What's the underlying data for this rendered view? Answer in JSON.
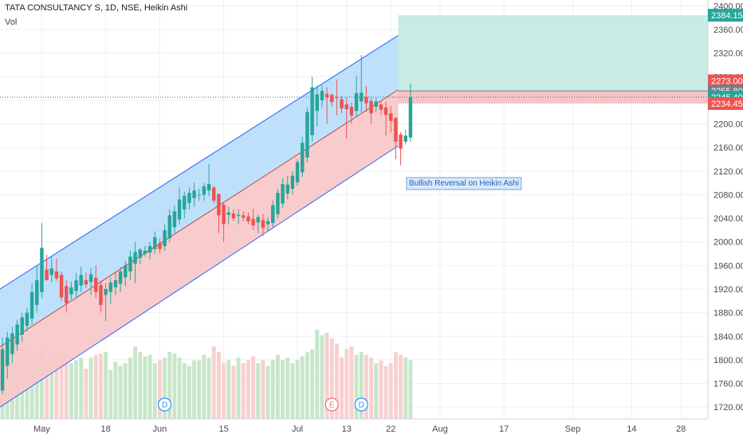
{
  "header": {
    "title": "TATA CONSULTANCY S, 1D, NSE, Heikin Ashi",
    "vol_label": "Vol"
  },
  "annotation": "Bullish Reversal on Heikin Ashi",
  "colors": {
    "up": "#26a69a",
    "down": "#ef5350",
    "vol_up": "#c8e6c9",
    "vol_down": "#f8d0d0",
    "channel_upper_fill": "#bbdefb",
    "channel_lower_fill": "#f8c9c9",
    "channel_line": "#2962ff",
    "target_fill": "#c8ebe4",
    "stop_fill": "#f7c5c5",
    "last_price_line": "#2a6b9c"
  },
  "price_tags": [
    {
      "label": "2384.15",
      "value": 2384.15,
      "color": "#26a69a"
    },
    {
      "label": "2273.00",
      "value": 2273.0,
      "color": "#ef5350"
    },
    {
      "label": "2255.80",
      "value": 2255.8,
      "color": "#787b86"
    },
    {
      "label": "2245.40",
      "value": 2245.4,
      "color": "#26a69a"
    },
    {
      "label": "2234.45",
      "value": 2234.45,
      "color": "#ef5350"
    }
  ],
  "event_markers": [
    {
      "label": "D",
      "type": "dividend",
      "color": "#2196f3",
      "date_index": 33
    },
    {
      "label": "E",
      "type": "earnings",
      "color": "#e57373",
      "date_index": 67
    },
    {
      "label": "D",
      "type": "dividend",
      "color": "#2196f3",
      "date_index": 73
    }
  ],
  "chart_data": {
    "type": "candlestick",
    "title": "TATA CONSULTANCY S, 1D, NSE, Heikin Ashi",
    "y_ticks": [
      1720,
      1760,
      1800,
      1840,
      1880,
      1920,
      1960,
      2000,
      2040,
      2080,
      2120,
      2160,
      2200,
      2240,
      2280,
      2320,
      2360,
      2400
    ],
    "ylim": [
      1700,
      2410
    ],
    "x_ticks": [
      {
        "label": "May",
        "index": 8
      },
      {
        "label": "18",
        "index": 21
      },
      {
        "label": "Jun",
        "index": 32
      },
      {
        "label": "15",
        "index": 45
      },
      {
        "label": "Jul",
        "index": 60
      },
      {
        "label": "13",
        "index": 70
      },
      {
        "label": "22",
        "index": 79
      },
      {
        "label": "Aug",
        "index": 89
      },
      {
        "label": "17",
        "index": 102
      },
      {
        "label": "Sep",
        "index": 116
      },
      {
        "label": "14",
        "index": 128
      },
      {
        "label": "28",
        "index": 138
      }
    ],
    "xlim": [
      -0.5,
      143.5
    ],
    "candles": [
      {
        "o": 1748,
        "h": 1838,
        "l": 1742,
        "c": 1818
      },
      {
        "o": 1790,
        "h": 1848,
        "l": 1768,
        "c": 1838
      },
      {
        "o": 1810,
        "h": 1856,
        "l": 1795,
        "c": 1845
      },
      {
        "o": 1826,
        "h": 1868,
        "l": 1815,
        "c": 1860
      },
      {
        "o": 1843,
        "h": 1880,
        "l": 1830,
        "c": 1872
      },
      {
        "o": 1858,
        "h": 1888,
        "l": 1848,
        "c": 1880
      },
      {
        "o": 1870,
        "h": 1930,
        "l": 1860,
        "c": 1915
      },
      {
        "o": 1893,
        "h": 1960,
        "l": 1880,
        "c": 1935
      },
      {
        "o": 1915,
        "h": 2032,
        "l": 1905,
        "c": 1990
      },
      {
        "o": 1953,
        "h": 1978,
        "l": 1935,
        "c": 1935
      },
      {
        "o": 1944,
        "h": 1975,
        "l": 1932,
        "c": 1955
      },
      {
        "o": 1950,
        "h": 1972,
        "l": 1934,
        "c": 1938
      },
      {
        "o": 1944,
        "h": 1950,
        "l": 1900,
        "c": 1906
      },
      {
        "o": 1925,
        "h": 1935,
        "l": 1880,
        "c": 1896
      },
      {
        "o": 1911,
        "h": 1933,
        "l": 1902,
        "c": 1923
      },
      {
        "o": 1917,
        "h": 1947,
        "l": 1905,
        "c": 1935
      },
      {
        "o": 1926,
        "h": 1958,
        "l": 1915,
        "c": 1944
      },
      {
        "o": 1935,
        "h": 1948,
        "l": 1922,
        "c": 1928
      },
      {
        "o": 1932,
        "h": 1956,
        "l": 1910,
        "c": 1945
      },
      {
        "o": 1939,
        "h": 1960,
        "l": 1905,
        "c": 1915
      },
      {
        "o": 1927,
        "h": 1934,
        "l": 1880,
        "c": 1893
      },
      {
        "o": 1910,
        "h": 1930,
        "l": 1866,
        "c": 1920
      },
      {
        "o": 1915,
        "h": 1940,
        "l": 1895,
        "c": 1931
      },
      {
        "o": 1923,
        "h": 1948,
        "l": 1910,
        "c": 1935
      },
      {
        "o": 1929,
        "h": 1958,
        "l": 1915,
        "c": 1950
      },
      {
        "o": 1940,
        "h": 1968,
        "l": 1925,
        "c": 1960
      },
      {
        "o": 1950,
        "h": 1985,
        "l": 1935,
        "c": 1975
      },
      {
        "o": 1963,
        "h": 2000,
        "l": 1930,
        "c": 1983
      },
      {
        "o": 1973,
        "h": 1990,
        "l": 1962,
        "c": 1987
      },
      {
        "o": 1980,
        "h": 1993,
        "l": 1975,
        "c": 1985
      },
      {
        "o": 1982,
        "h": 2000,
        "l": 1970,
        "c": 1993
      },
      {
        "o": 1988,
        "h": 2018,
        "l": 1980,
        "c": 2008
      },
      {
        "o": 1998,
        "h": 2006,
        "l": 1980,
        "c": 1988
      },
      {
        "o": 1993,
        "h": 2030,
        "l": 1985,
        "c": 2020
      },
      {
        "o": 2006,
        "h": 2055,
        "l": 2000,
        "c": 2045
      },
      {
        "o": 2025,
        "h": 2062,
        "l": 2015,
        "c": 2052
      },
      {
        "o": 2038,
        "h": 2092,
        "l": 2030,
        "c": 2072
      },
      {
        "o": 2055,
        "h": 2085,
        "l": 2040,
        "c": 2078
      },
      {
        "o": 2066,
        "h": 2092,
        "l": 2055,
        "c": 2083
      },
      {
        "o": 2074,
        "h": 2100,
        "l": 2060,
        "c": 2087
      },
      {
        "o": 2080,
        "h": 2090,
        "l": 2070,
        "c": 2080
      },
      {
        "o": 2080,
        "h": 2100,
        "l": 2070,
        "c": 2094
      },
      {
        "o": 2087,
        "h": 2132,
        "l": 2078,
        "c": 2098
      },
      {
        "o": 2092,
        "h": 2095,
        "l": 2065,
        "c": 2070
      },
      {
        "o": 2081,
        "h": 2082,
        "l": 2015,
        "c": 2045
      },
      {
        "o": 2063,
        "h": 2068,
        "l": 2000,
        "c": 2030
      },
      {
        "o": 2046,
        "h": 2060,
        "l": 2030,
        "c": 2050
      },
      {
        "o": 2048,
        "h": 2055,
        "l": 2035,
        "c": 2040
      },
      {
        "o": 2044,
        "h": 2055,
        "l": 2030,
        "c": 2046
      },
      {
        "o": 2045,
        "h": 2052,
        "l": 2035,
        "c": 2041
      },
      {
        "o": 2043,
        "h": 2050,
        "l": 2030,
        "c": 2035
      },
      {
        "o": 2039,
        "h": 2056,
        "l": 2020,
        "c": 2028
      },
      {
        "o": 2033,
        "h": 2046,
        "l": 2015,
        "c": 2042
      },
      {
        "o": 2037,
        "h": 2048,
        "l": 2010,
        "c": 2024
      },
      {
        "o": 2030,
        "h": 2042,
        "l": 2018,
        "c": 2035
      },
      {
        "o": 2032,
        "h": 2070,
        "l": 2025,
        "c": 2062
      },
      {
        "o": 2047,
        "h": 2090,
        "l": 2040,
        "c": 2083
      },
      {
        "o": 2065,
        "h": 2108,
        "l": 2058,
        "c": 2098
      },
      {
        "o": 2082,
        "h": 2112,
        "l": 2072,
        "c": 2097
      },
      {
        "o": 2090,
        "h": 2120,
        "l": 2080,
        "c": 2112
      },
      {
        "o": 2101,
        "h": 2140,
        "l": 2095,
        "c": 2135
      },
      {
        "o": 2118,
        "h": 2178,
        "l": 2110,
        "c": 2168
      },
      {
        "o": 2143,
        "h": 2228,
        "l": 2135,
        "c": 2220
      },
      {
        "o": 2181,
        "h": 2280,
        "l": 2170,
        "c": 2262
      },
      {
        "o": 2222,
        "h": 2265,
        "l": 2196,
        "c": 2250
      },
      {
        "o": 2240,
        "h": 2265,
        "l": 2228,
        "c": 2256
      },
      {
        "o": 2251,
        "h": 2262,
        "l": 2200,
        "c": 2245
      },
      {
        "o": 2249,
        "h": 2252,
        "l": 2230,
        "c": 2237
      },
      {
        "o": 2246,
        "h": 2275,
        "l": 2215,
        "c": 2244
      },
      {
        "o": 2242,
        "h": 2248,
        "l": 2218,
        "c": 2226
      },
      {
        "o": 2233,
        "h": 2245,
        "l": 2175,
        "c": 2225
      },
      {
        "o": 2229,
        "h": 2236,
        "l": 2200,
        "c": 2214
      },
      {
        "o": 2222,
        "h": 2282,
        "l": 2212,
        "c": 2252
      },
      {
        "o": 2238,
        "h": 2317,
        "l": 2220,
        "c": 2253
      },
      {
        "o": 2246,
        "h": 2264,
        "l": 2220,
        "c": 2235
      },
      {
        "o": 2239,
        "h": 2245,
        "l": 2200,
        "c": 2218
      },
      {
        "o": 2229,
        "h": 2244,
        "l": 2220,
        "c": 2238
      },
      {
        "o": 2233,
        "h": 2238,
        "l": 2215,
        "c": 2224
      },
      {
        "o": 2228,
        "h": 2238,
        "l": 2180,
        "c": 2215
      },
      {
        "o": 2218,
        "h": 2230,
        "l": 2185,
        "c": 2205
      },
      {
        "o": 2210,
        "h": 2212,
        "l": 2140,
        "c": 2170
      },
      {
        "o": 2182,
        "h": 2186,
        "l": 2130,
        "c": 2158
      },
      {
        "o": 2170,
        "h": 2190,
        "l": 2165,
        "c": 2180
      },
      {
        "o": 2177,
        "h": 2268,
        "l": 2170,
        "c": 2245
      }
    ],
    "volumes": [
      50,
      46,
      54,
      48,
      45,
      52,
      38,
      44,
      50,
      42,
      40,
      47,
      48,
      44,
      40,
      42,
      44,
      36,
      44,
      46,
      47,
      48,
      35,
      41,
      38,
      40,
      44,
      52,
      48,
      45,
      46,
      40,
      42,
      44,
      48,
      47,
      44,
      40,
      38,
      42,
      42,
      46,
      44,
      52,
      48,
      40,
      42,
      38,
      44,
      40,
      42,
      45,
      40,
      42,
      38,
      42,
      46,
      42,
      44,
      40,
      42,
      45,
      48,
      50,
      64,
      60,
      62,
      58,
      54,
      44,
      50,
      52,
      46,
      48,
      46,
      44,
      40,
      42,
      38,
      40,
      48,
      46,
      44,
      42
    ],
    "channel": {
      "upper_start": [
        -0.5,
        1920
      ],
      "upper_end": [
        80.5,
        2350
      ],
      "mid_start": [
        -0.5,
        1822
      ],
      "mid_end": [
        80.5,
        2258
      ],
      "lower_start": [
        -0.5,
        1720
      ],
      "lower_end": [
        80.5,
        2163
      ]
    },
    "position": {
      "start_index": 80.5,
      "target": 2384.15,
      "entry": 2255.8,
      "stop": 2234.45
    },
    "last_price": 2245.4
  }
}
